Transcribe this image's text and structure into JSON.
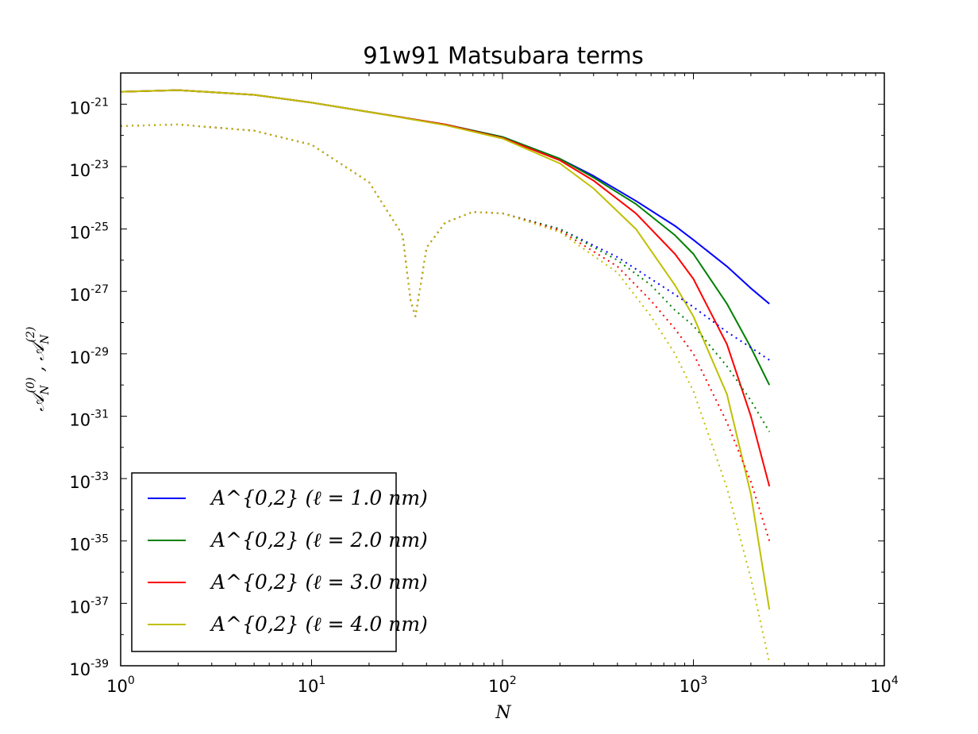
{
  "chart_data": {
    "type": "line",
    "title": "91w91 Matsubara terms",
    "xlabel": "N",
    "ylabel": "𝒜N(0) , 𝒜N(2)",
    "xscale": "log",
    "yscale": "log",
    "xlim": [
      1,
      10000
    ],
    "ylim": [
      1e-39,
      1e-20
    ],
    "x_ticks": [
      {
        "base": "10",
        "exp": "0",
        "value": 1
      },
      {
        "base": "10",
        "exp": "1",
        "value": 10
      },
      {
        "base": "10",
        "exp": "2",
        "value": 100
      },
      {
        "base": "10",
        "exp": "3",
        "value": 1000
      },
      {
        "base": "10",
        "exp": "4",
        "value": 10000
      }
    ],
    "y_ticks": [
      {
        "base": "10",
        "exp": "-21",
        "value": -21
      },
      {
        "base": "10",
        "exp": "-23",
        "value": -23
      },
      {
        "base": "10",
        "exp": "-25",
        "value": -25
      },
      {
        "base": "10",
        "exp": "-27",
        "value": -27
      },
      {
        "base": "10",
        "exp": "-29",
        "value": -29
      },
      {
        "base": "10",
        "exp": "-31",
        "value": -31
      },
      {
        "base": "10",
        "exp": "-33",
        "value": -33
      },
      {
        "base": "10",
        "exp": "-35",
        "value": -35
      },
      {
        "base": "10",
        "exp": "-37",
        "value": -37
      },
      {
        "base": "10",
        "exp": "-39",
        "value": -39
      }
    ],
    "grid": false,
    "legend_position": "lower-left",
    "legend": [
      {
        "text": "A^{0,2} (ℓ = 1.0  nm)",
        "color": "#0000ff"
      },
      {
        "text": "A^{0,2} (ℓ = 2.0  nm)",
        "color": "#008000"
      },
      {
        "text": "A^{0,2} (ℓ = 3.0  nm)",
        "color": "#ff0000"
      },
      {
        "text": "A^{0,2} (ℓ = 4.0  nm)",
        "color": "#bfbf00"
      }
    ],
    "series": [
      {
        "ell": 1.0,
        "color": "#0000ff",
        "component": "A0",
        "style": "solid",
        "x": [
          1,
          2,
          5,
          10,
          20,
          50,
          100,
          200,
          300,
          500,
          800,
          1000,
          1500,
          2000,
          2500
        ],
        "log_y": [
          -20.6,
          -20.55,
          -20.7,
          -20.95,
          -21.25,
          -21.65,
          -22.05,
          -22.75,
          -23.3,
          -24.1,
          -24.9,
          -25.35,
          -26.2,
          -26.9,
          -27.4
        ]
      },
      {
        "ell": 2.0,
        "color": "#008000",
        "component": "A0",
        "style": "solid",
        "x": [
          1,
          2,
          5,
          10,
          20,
          50,
          100,
          200,
          300,
          500,
          800,
          1000,
          1500,
          2000,
          2500
        ],
        "log_y": [
          -20.6,
          -20.55,
          -20.7,
          -20.95,
          -21.25,
          -21.65,
          -22.05,
          -22.75,
          -23.35,
          -24.2,
          -25.2,
          -25.8,
          -27.4,
          -28.8,
          -30.0
        ]
      },
      {
        "ell": 3.0,
        "color": "#ff0000",
        "component": "A0",
        "style": "solid",
        "x": [
          1,
          2,
          5,
          10,
          20,
          50,
          100,
          200,
          300,
          500,
          800,
          1000,
          1500,
          2000,
          2500
        ],
        "log_y": [
          -20.6,
          -20.55,
          -20.7,
          -20.95,
          -21.25,
          -21.65,
          -22.08,
          -22.8,
          -23.45,
          -24.5,
          -25.8,
          -26.6,
          -28.7,
          -31.0,
          -33.25
        ]
      },
      {
        "ell": 4.0,
        "color": "#bfbf00",
        "component": "A0",
        "style": "solid",
        "x": [
          1,
          2,
          5,
          10,
          20,
          50,
          100,
          200,
          300,
          500,
          800,
          1000,
          1500,
          2000,
          2500
        ],
        "log_y": [
          -20.6,
          -20.55,
          -20.7,
          -20.95,
          -21.25,
          -21.67,
          -22.1,
          -22.9,
          -23.7,
          -25.0,
          -26.8,
          -27.8,
          -30.3,
          -33.5,
          -37.2
        ]
      },
      {
        "ell": 1.0,
        "color": "#0000ff",
        "component": "A2",
        "style": "dotted",
        "x": [
          1,
          2,
          5,
          10,
          20,
          30,
          33,
          35,
          37,
          40,
          50,
          70,
          100,
          200,
          400,
          600,
          800,
          1000,
          1500,
          2000,
          2500
        ],
        "log_y": [
          -21.7,
          -21.65,
          -21.85,
          -22.3,
          -23.5,
          -25.2,
          -27.3,
          -27.8,
          -26.9,
          -25.6,
          -24.8,
          -24.45,
          -24.5,
          -25.0,
          -25.9,
          -26.6,
          -27.1,
          -27.5,
          -28.3,
          -28.8,
          -29.2
        ]
      },
      {
        "ell": 2.0,
        "color": "#008000",
        "component": "A2",
        "style": "dotted",
        "x": [
          1,
          2,
          5,
          10,
          20,
          30,
          33,
          35,
          37,
          40,
          50,
          70,
          100,
          200,
          400,
          600,
          800,
          1000,
          1500,
          2000,
          2500
        ],
        "log_y": [
          -21.7,
          -21.65,
          -21.85,
          -22.3,
          -23.5,
          -25.2,
          -27.3,
          -27.8,
          -26.9,
          -25.6,
          -24.8,
          -24.45,
          -24.5,
          -25.0,
          -26.0,
          -26.8,
          -27.6,
          -28.1,
          -29.4,
          -30.5,
          -31.5
        ]
      },
      {
        "ell": 3.0,
        "color": "#ff0000",
        "component": "A2",
        "style": "dotted",
        "x": [
          1,
          2,
          5,
          10,
          20,
          30,
          33,
          35,
          37,
          40,
          50,
          70,
          100,
          200,
          400,
          600,
          800,
          1000,
          1500,
          2000,
          2500
        ],
        "log_y": [
          -21.7,
          -21.65,
          -21.85,
          -22.3,
          -23.5,
          -25.2,
          -27.3,
          -27.8,
          -26.9,
          -25.6,
          -24.8,
          -24.45,
          -24.5,
          -25.05,
          -26.2,
          -27.3,
          -28.2,
          -29.0,
          -31.2,
          -33.1,
          -35.0
        ]
      },
      {
        "ell": 4.0,
        "color": "#bfbf00",
        "component": "A2",
        "style": "dotted",
        "x": [
          1,
          2,
          5,
          10,
          20,
          30,
          33,
          35,
          37,
          40,
          50,
          70,
          100,
          200,
          400,
          600,
          800,
          1000,
          1500,
          2000,
          2500
        ],
        "log_y": [
          -21.7,
          -21.65,
          -21.85,
          -22.3,
          -23.5,
          -25.2,
          -27.3,
          -27.8,
          -26.9,
          -25.6,
          -24.8,
          -24.45,
          -24.5,
          -25.1,
          -26.4,
          -27.8,
          -29.0,
          -30.2,
          -33.3,
          -36.2,
          -38.9
        ]
      }
    ]
  }
}
